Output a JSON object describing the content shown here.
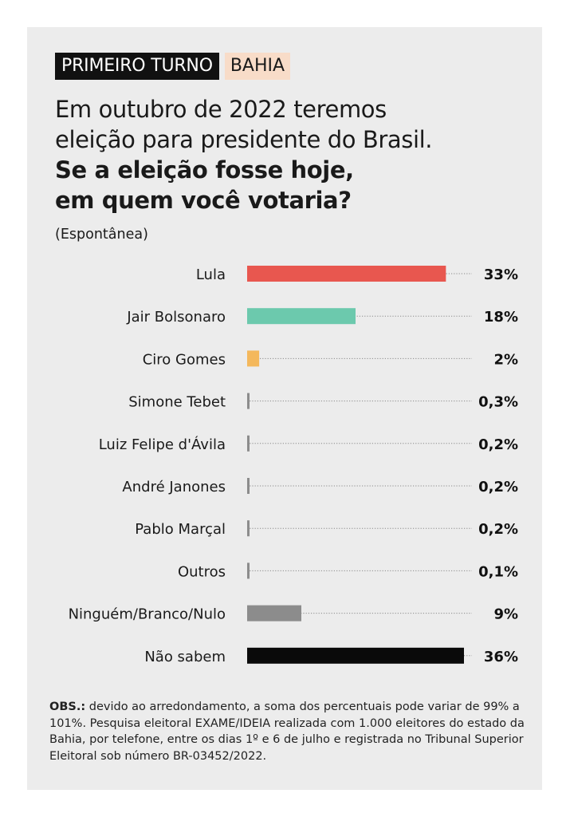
{
  "tags": {
    "round": "PRIMEIRO TURNO",
    "state": "BAHIA"
  },
  "headline": {
    "line1": "Em outubro de 2022 teremos",
    "line2": "eleição para presidente do Brasil.",
    "question1": "Se a eleição fosse hoje,",
    "question2": "em quem você votaria?"
  },
  "subtitle": "(Espontânea)",
  "chart_data": {
    "type": "bar",
    "orientation": "horizontal",
    "categories": [
      "Lula",
      "Jair Bolsonaro",
      "Ciro Gomes",
      "Simone Tebet",
      "Luiz Felipe d'Ávila",
      "André Janones",
      "Pablo Marçal",
      "Outros",
      "Ninguém/Branco/Nulo",
      "Não sabem"
    ],
    "values": [
      33,
      18,
      2,
      0.3,
      0.2,
      0.2,
      0.2,
      0.1,
      9,
      36
    ],
    "value_labels": [
      "33%",
      "18%",
      "2%",
      "0,3%",
      "0,2%",
      "0,2%",
      "0,2%",
      "0,1%",
      "9%",
      "36%"
    ],
    "colors": [
      "#e8574f",
      "#6cc9ad",
      "#f4b85c",
      "#8c8c8c",
      "#8c8c8c",
      "#8c8c8c",
      "#8c8c8c",
      "#8c8c8c",
      "#8c8c8c",
      "#0a0a0a"
    ],
    "xlim": [
      0,
      36
    ],
    "grid": false,
    "leader_lines": true
  },
  "obs": {
    "label": "OBS.:",
    "text": " devido ao arredondamento, a soma dos percentuais pode variar de 99% a 101%. Pesquisa eleitoral EXAME/IDEIA realizada com 1.000 eleitores do estado da Bahia, por telefone, entre os dias 1º e 6 de julho e registrada no Tribunal Superior Eleitoral sob número BR-03452/2022."
  }
}
